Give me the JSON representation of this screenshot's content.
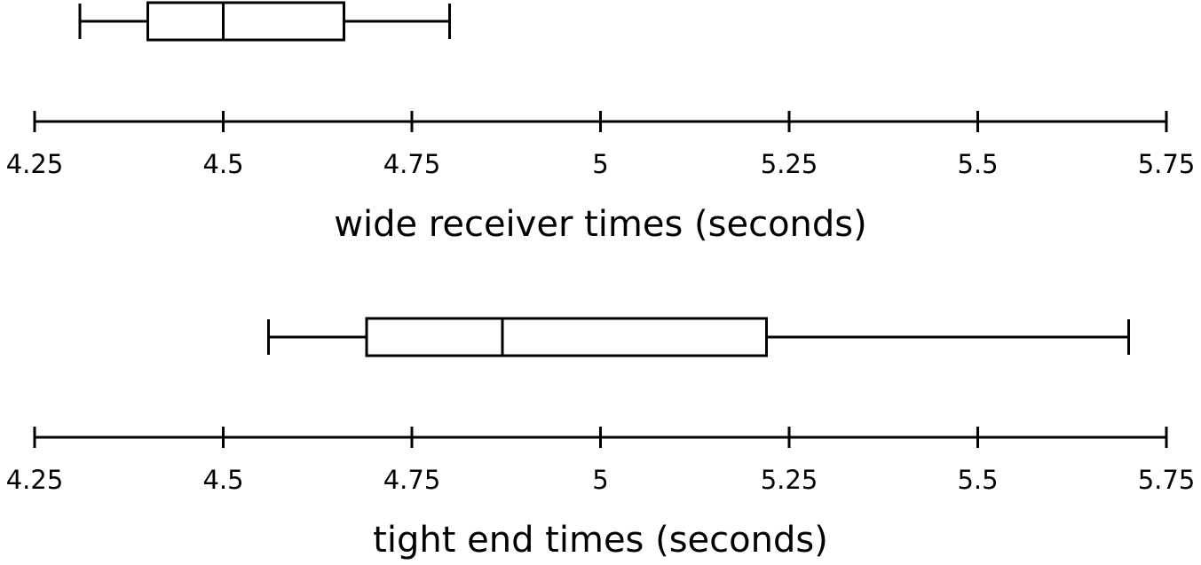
{
  "chart_data": [
    {
      "type": "box",
      "xlabel": "wide receiver times (seconds)",
      "min": 4.31,
      "q1": 4.4,
      "median": 4.5,
      "q3": 4.66,
      "max": 4.8,
      "xlim": [
        4.25,
        5.75
      ],
      "xticks": [
        4.25,
        4.5,
        4.75,
        5,
        5.25,
        5.5,
        5.75
      ],
      "color": "#000000"
    },
    {
      "type": "box",
      "xlabel": "tight end times (seconds)",
      "min": 4.56,
      "q1": 4.69,
      "median": 4.87,
      "q3": 5.22,
      "max": 5.7,
      "xlim": [
        4.25,
        5.75
      ],
      "xticks": [
        4.25,
        4.5,
        4.75,
        5,
        5.25,
        5.5,
        5.75
      ],
      "color": "#000000"
    }
  ]
}
